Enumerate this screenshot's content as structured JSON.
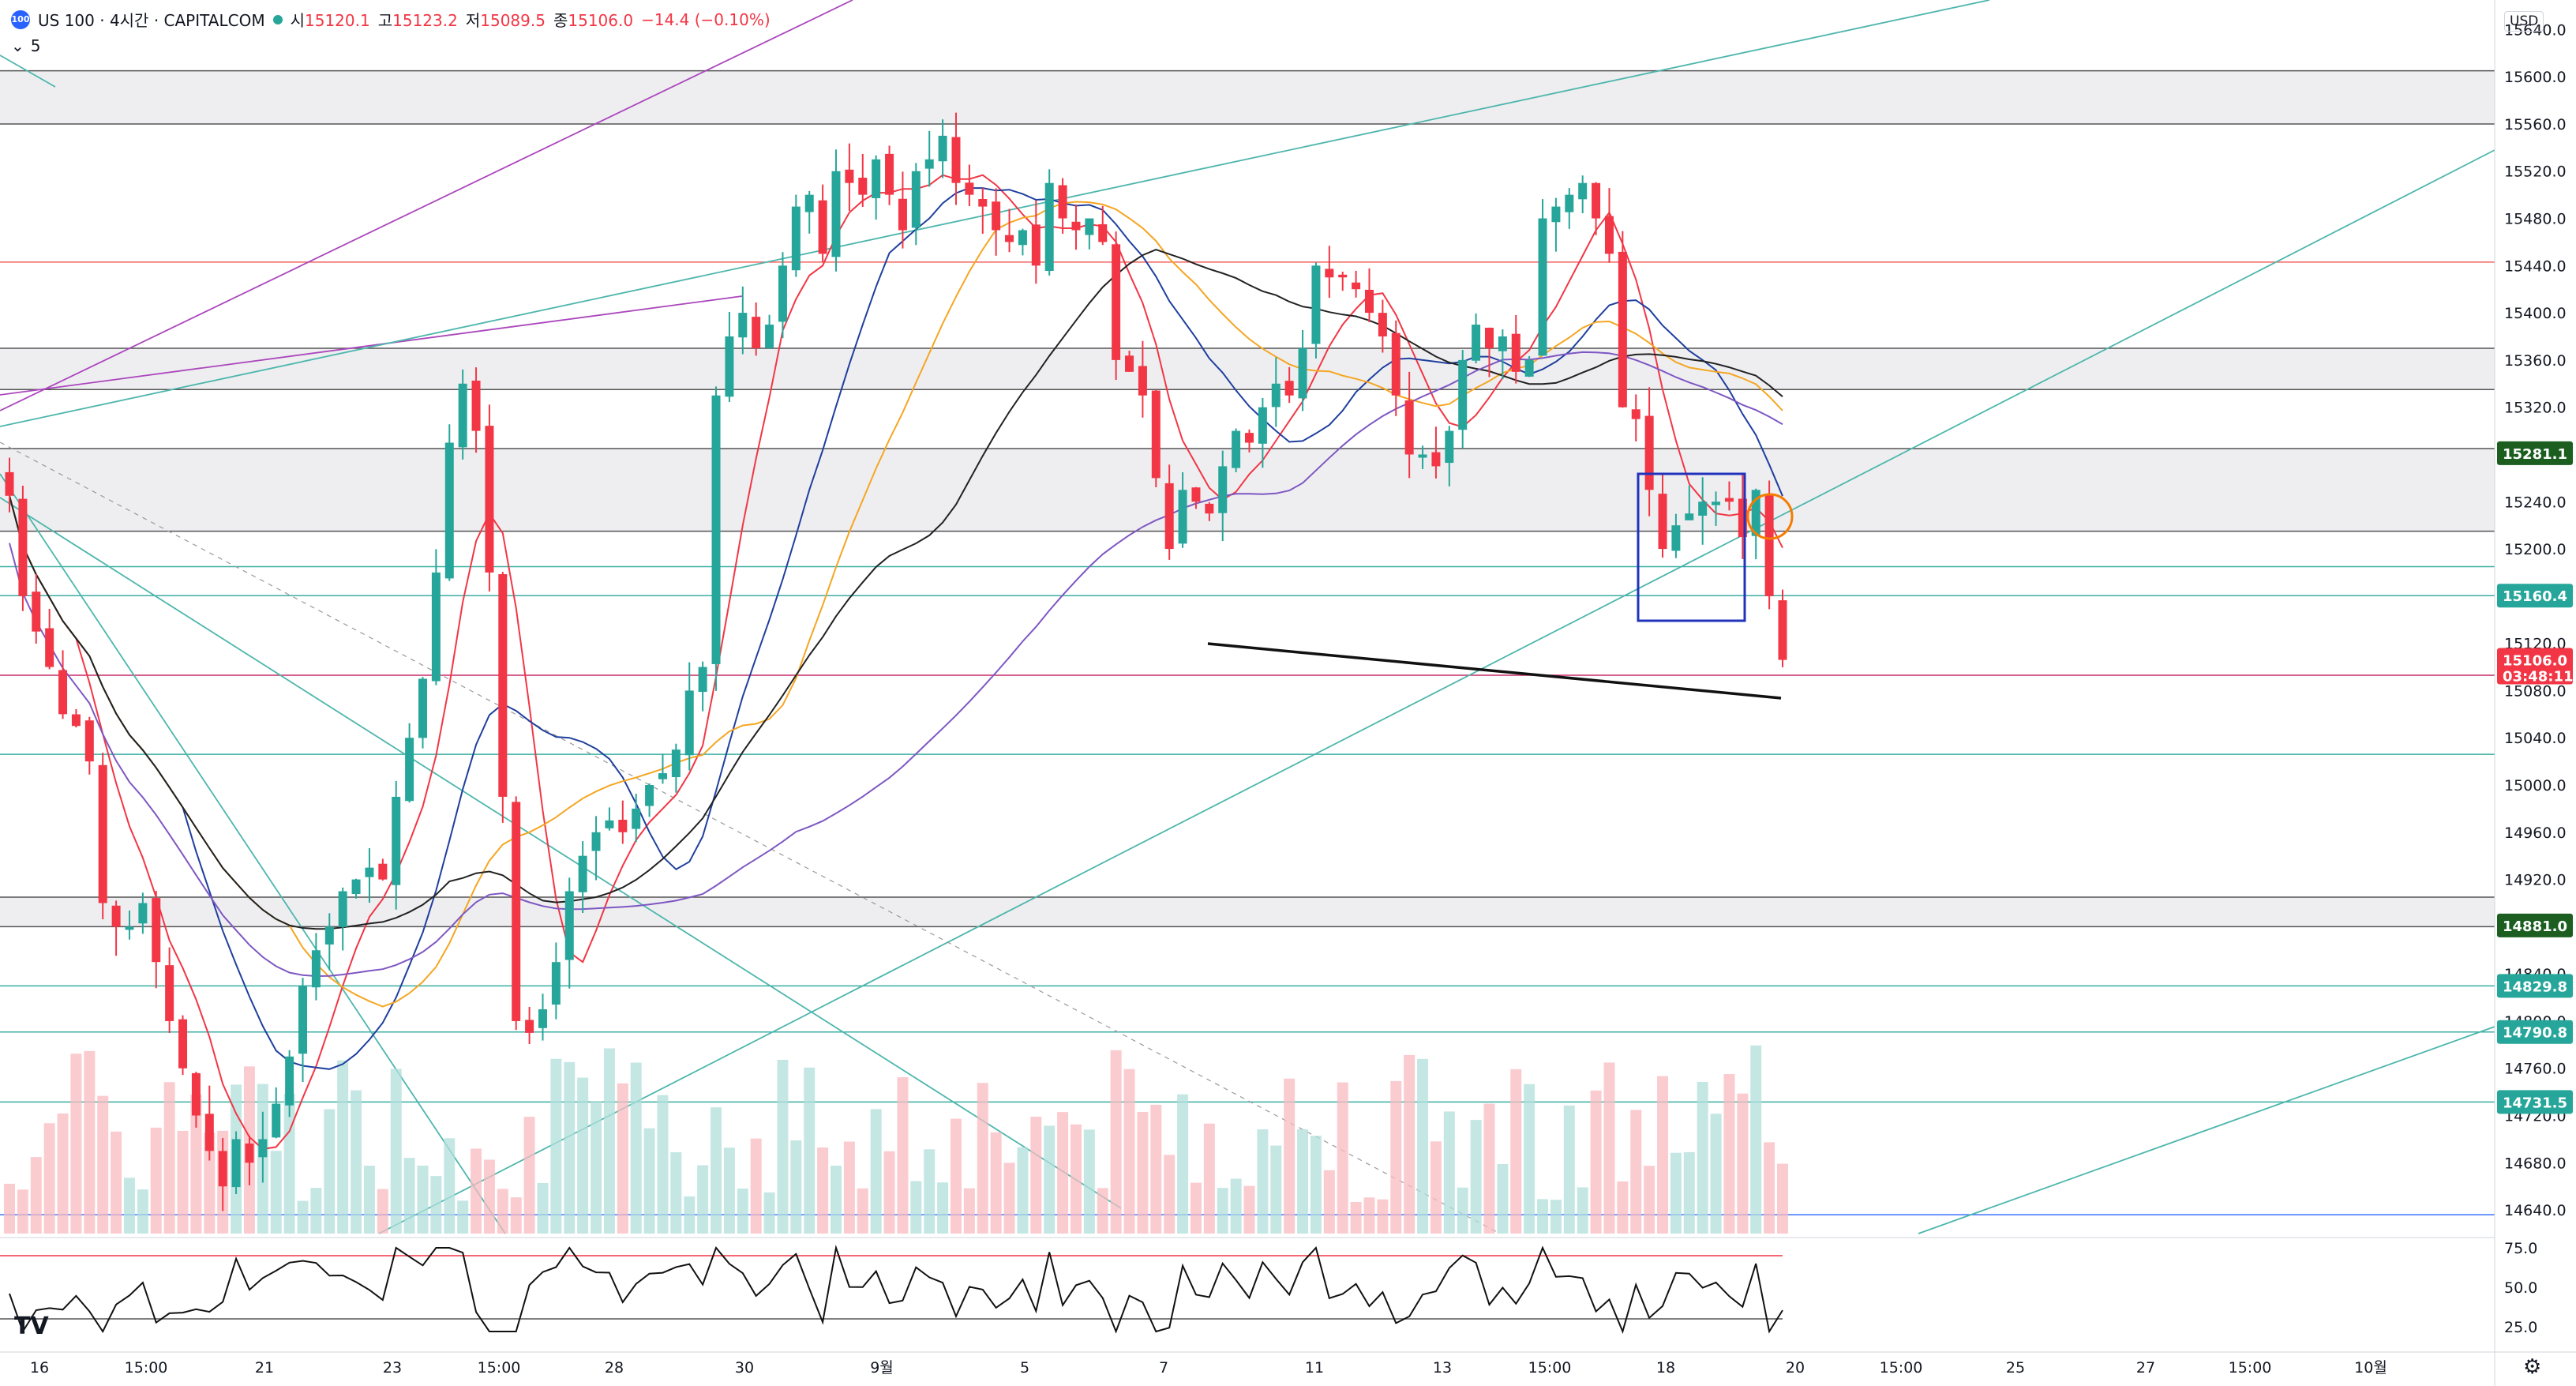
{
  "legend": {
    "logo_text": "100",
    "title": "US 100 · 4시간 · CAPITALCOM",
    "open_label": "시",
    "open": "15120.1",
    "high_label": "고",
    "high": "15123.2",
    "low_label": "저",
    "low": "15089.5",
    "close_label": "종",
    "close": "15106.0",
    "change": "−14.4 (−0.10%)",
    "collapse_label": "5"
  },
  "currency": "USD",
  "brand": "TV",
  "colors": {
    "up": "#26a69a",
    "down": "#f23645",
    "ma_short": "#f23645",
    "ma_mid": "#1f3f9e",
    "ma_long": "#f5a623",
    "ma_200": "#222222",
    "ma_purple": "#7e57c2"
  },
  "chart_data": {
    "type": "candlestick",
    "y_axis": {
      "range": [
        14620,
        15665
      ],
      "ticks": [
        "15640.0",
        "15600.0",
        "15560.0",
        "15520.0",
        "15480.0",
        "15440.0",
        "15400.0",
        "15360.0",
        "15320.0",
        "15280.0",
        "15240.0",
        "15200.0",
        "15160.0",
        "15120.0",
        "15080.0",
        "15040.0",
        "15000.0",
        "14960.0",
        "14920.0",
        "14880.0",
        "14840.0",
        "14800.0",
        "14760.0",
        "14720.0",
        "14680.0",
        "14640.0"
      ]
    },
    "x_axis": {
      "ticks": [
        "16",
        "15:00",
        "21",
        "23",
        "15:00",
        "28",
        "30",
        "9월",
        "5",
        "7",
        "11",
        "13",
        "15:00",
        "18",
        "20",
        "15:00",
        "25",
        "27",
        "15:00",
        "10월"
      ]
    },
    "price_badges": [
      {
        "value": "15281.1",
        "color": "#1b5e20"
      },
      {
        "value": "15160.4",
        "color": "#26a69a"
      },
      {
        "value": "15106.0",
        "sub": "03:48:11",
        "color": "#f23645"
      },
      {
        "value": "14881.0",
        "color": "#1b5e20"
      },
      {
        "value": "14829.8",
        "color": "#26a69a"
      },
      {
        "value": "14790.8",
        "color": "#26a69a"
      },
      {
        "value": "14731.5",
        "color": "#26a69a"
      }
    ],
    "last_price": 15106.0,
    "sparse_closes": [
      15245,
      15160,
      15130,
      15100,
      15060,
      15050,
      15020,
      14900,
      14880,
      14880,
      14900,
      14850,
      14800,
      14760,
      14720,
      14690,
      14660,
      14700,
      14680,
      14700,
      14730,
      14770,
      14830,
      14860,
      14880,
      14910,
      14920,
      14930,
      14920,
      14990,
      15040,
      15090,
      15180,
      15290,
      15340,
      15300,
      15180,
      14990,
      14800,
      14790,
      14810,
      14850,
      14910,
      14940,
      14960,
      14970,
      14960,
      14980,
      15000,
      15010,
      15030,
      15080,
      15100,
      15330,
      15380,
      15400,
      15370,
      15390,
      15440,
      15490,
      15500,
      15450,
      15520,
      15510,
      15500,
      15530,
      15500,
      15470,
      15520,
      15530,
      15550,
      15510,
      15500,
      15490,
      15470,
      15460,
      15470,
      15440,
      15510,
      15480,
      15470,
      15480,
      15460,
      15360,
      15350,
      15330,
      15260,
      15200,
      15250,
      15240,
      15230,
      15270,
      15300,
      15290,
      15320,
      15340,
      15330,
      15370,
      15440,
      15430,
      15430,
      15420,
      15400,
      15380,
      15330,
      15280,
      15280,
      15270,
      15300,
      15360,
      15390,
      15370,
      15380,
      15350,
      15360,
      15480,
      15490,
      15500,
      15510,
      15480,
      15450,
      15320,
      15310,
      15250,
      15200,
      15220,
      15230,
      15240,
      15240,
      15240,
      15210,
      15250,
      15160,
      15106
    ]
  },
  "indicator": {
    "ticks": [
      "75.0",
      "50.0",
      "25.0"
    ],
    "range": [
      20,
      80
    ],
    "upper": 70,
    "lower": 30
  }
}
